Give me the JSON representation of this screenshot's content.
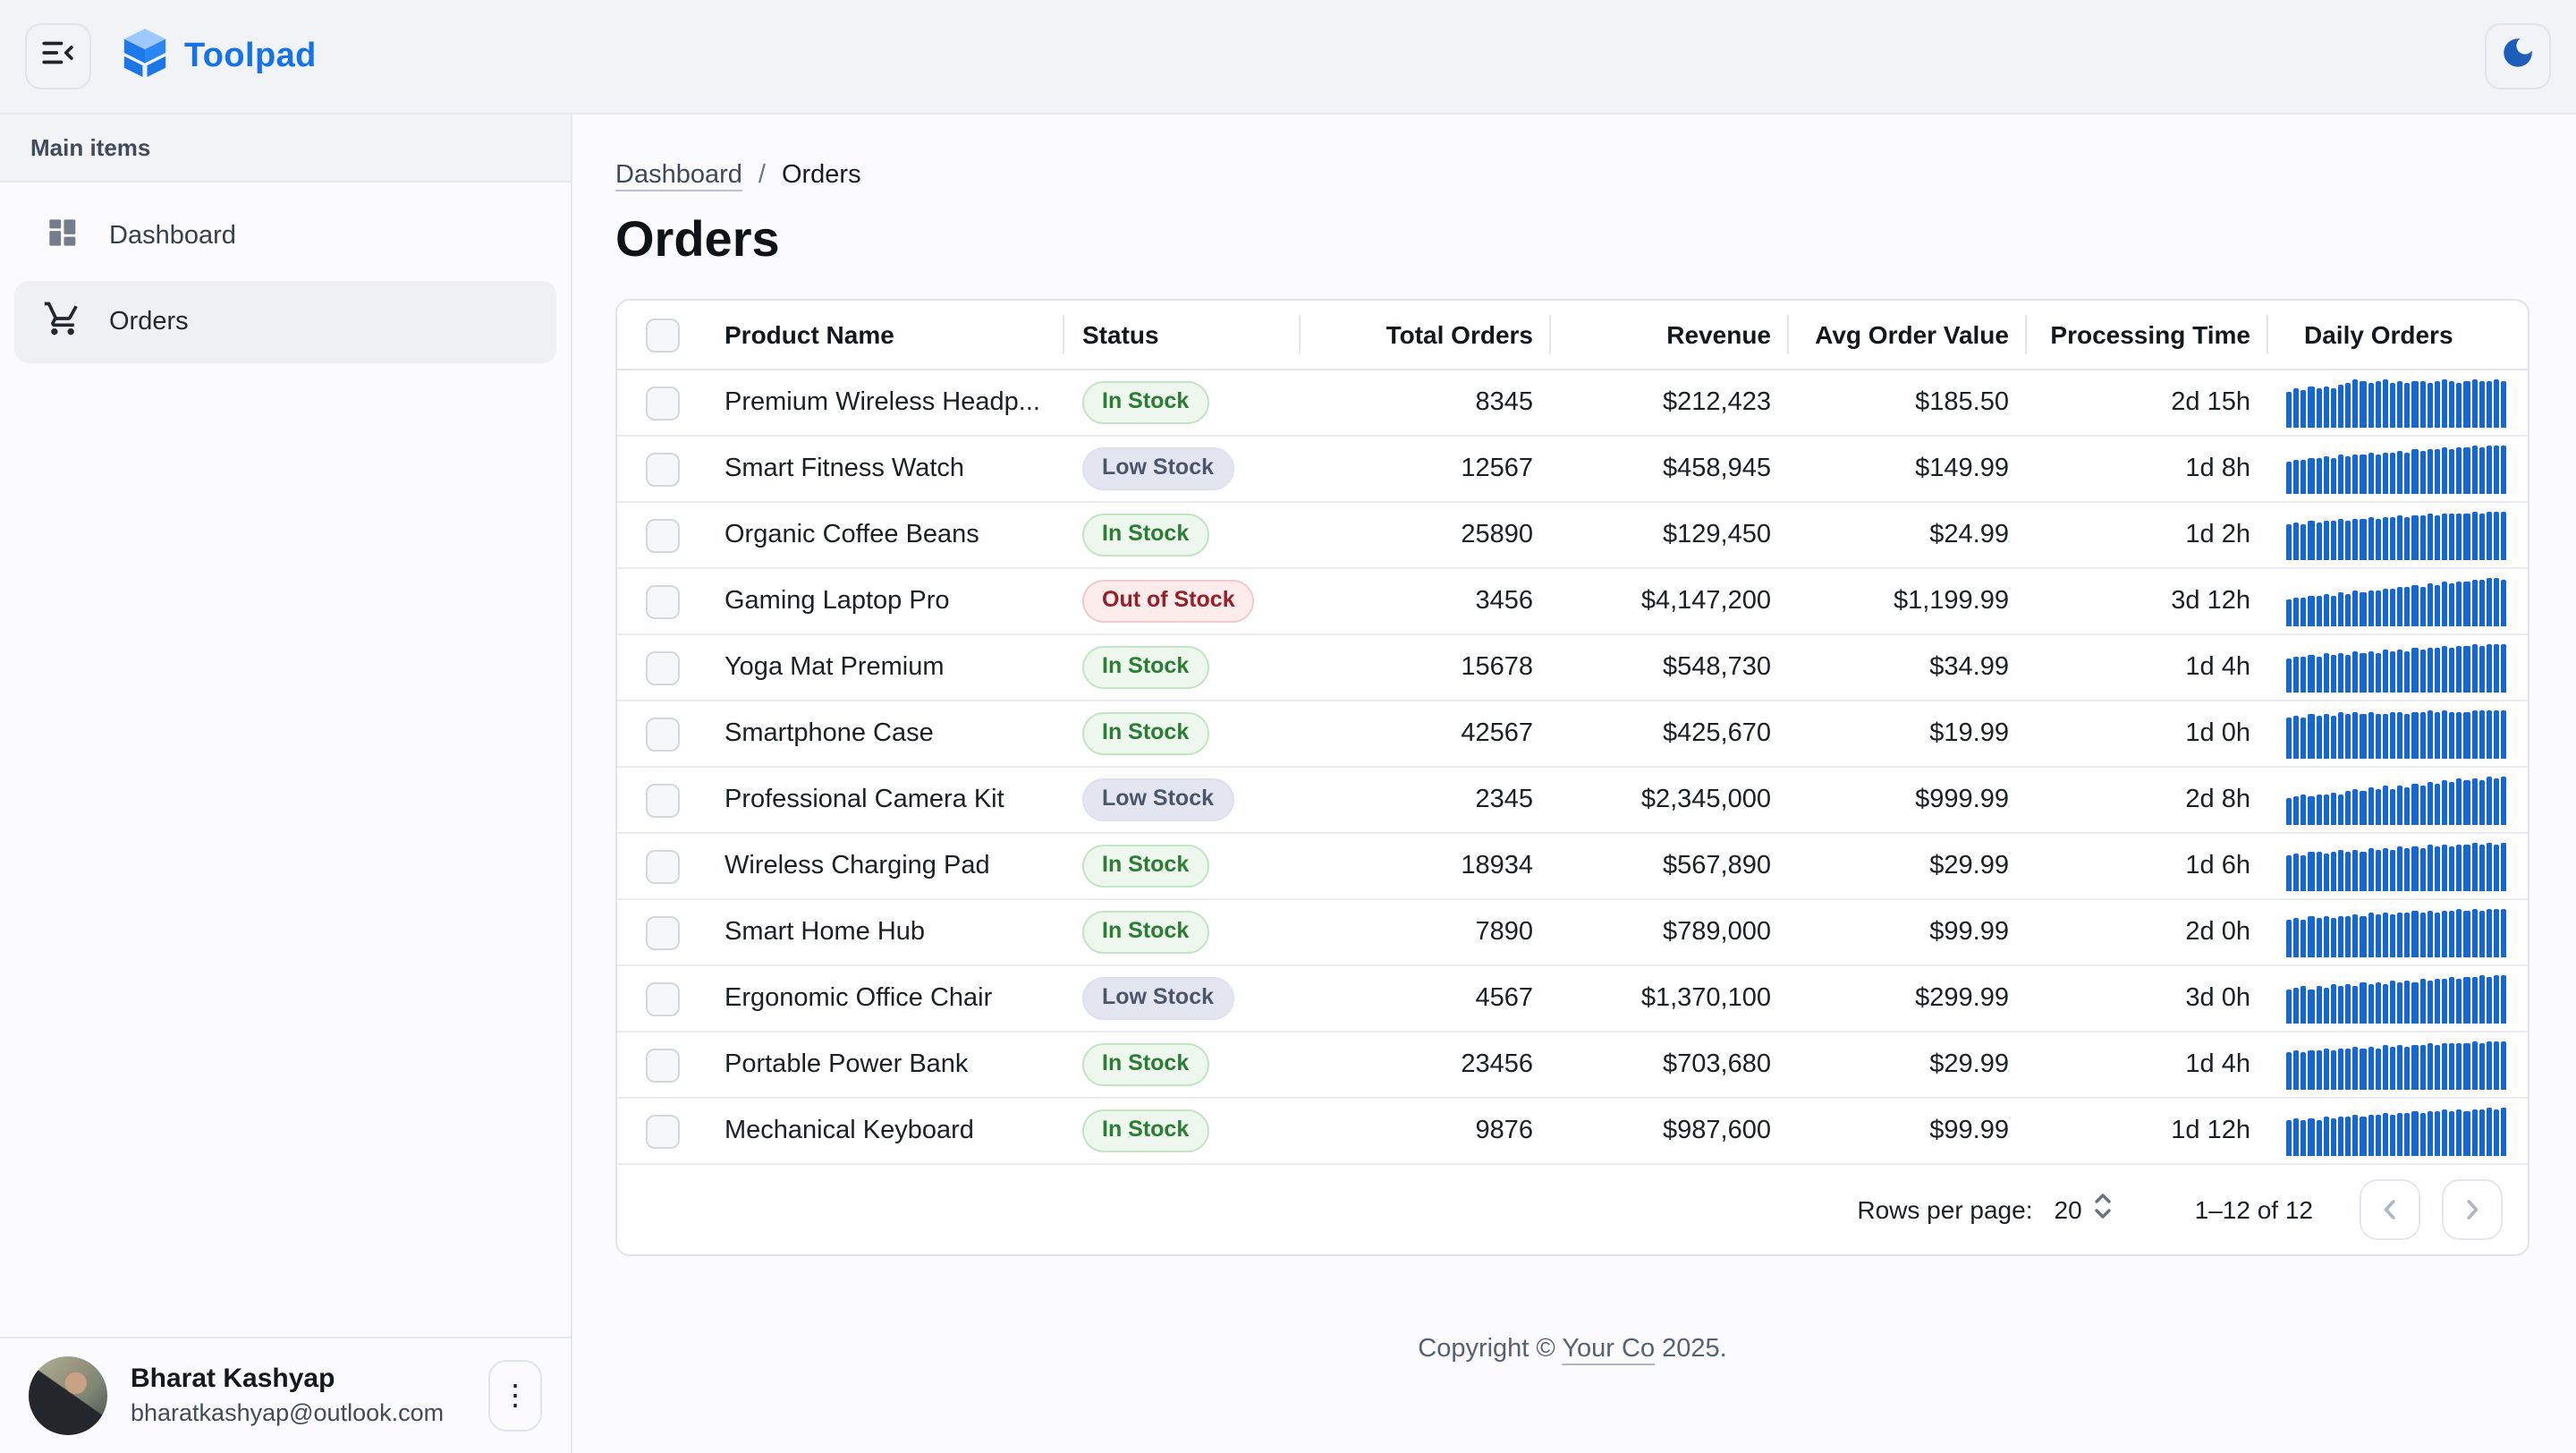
{
  "header": {
    "brand": "Toolpad"
  },
  "sidebar": {
    "section_label": "Main items",
    "items": [
      {
        "label": "Dashboard",
        "icon": "dashboard-icon",
        "selected": false
      },
      {
        "label": "Orders",
        "icon": "cart-icon",
        "selected": true
      }
    ],
    "user": {
      "name": "Bharat Kashyap",
      "email": "bharatkashyap@outlook.com"
    }
  },
  "breadcrumb": {
    "parent": "Dashboard",
    "separator": "/",
    "current": "Orders"
  },
  "page_title": "Orders",
  "table": {
    "columns": {
      "product": "Product Name",
      "status": "Status",
      "total_orders": "Total Orders",
      "revenue": "Revenue",
      "avg_order_value": "Avg Order Value",
      "processing_time": "Processing Time",
      "daily_orders": "Daily Orders"
    },
    "rows": [
      {
        "product": "Premium Wireless Headp...",
        "status": "In Stock",
        "status_variant": "in",
        "total_orders": "8345",
        "revenue": "$212,423",
        "avg_order_value": "$185.50",
        "processing_time": "2d 15h",
        "daily_orders": [
          0.74,
          0.8,
          0.76,
          0.83,
          0.78,
          0.85,
          0.8,
          0.88,
          0.92,
          1,
          0.95,
          0.9,
          0.94,
          0.97,
          0.92,
          0.95,
          0.9,
          0.93,
          0.96,
          0.92,
          0.95,
          0.98,
          0.93,
          0.9,
          0.94,
          0.97,
          0.93,
          0.96,
          1,
          0.95
        ]
      },
      {
        "product": "Smart Fitness Watch",
        "status": "Low Stock",
        "status_variant": "low",
        "total_orders": "12567",
        "revenue": "$458,945",
        "avg_order_value": "$149.99",
        "processing_time": "1d 8h",
        "daily_orders": [
          0.66,
          0.7,
          0.68,
          0.73,
          0.71,
          0.75,
          0.73,
          0.78,
          0.76,
          0.8,
          0.78,
          0.83,
          0.81,
          0.85,
          0.83,
          0.87,
          0.85,
          0.89,
          0.87,
          0.91,
          0.89,
          0.93,
          0.91,
          0.95,
          0.93,
          0.97,
          0.95,
          1,
          0.97,
          1
        ]
      },
      {
        "product": "Organic Coffee Beans",
        "status": "In Stock",
        "status_variant": "in",
        "total_orders": "25890",
        "revenue": "$129,450",
        "avg_order_value": "$24.99",
        "processing_time": "1d 2h",
        "daily_orders": [
          0.72,
          0.76,
          0.74,
          0.79,
          0.77,
          0.81,
          0.79,
          0.83,
          0.81,
          0.85,
          0.83,
          0.87,
          0.85,
          0.88,
          0.86,
          0.9,
          0.88,
          0.92,
          0.9,
          0.93,
          0.91,
          0.95,
          0.93,
          0.96,
          0.94,
          0.98,
          0.95,
          1,
          0.97,
          1
        ]
      },
      {
        "product": "Gaming Laptop Pro",
        "status": "Out of Stock",
        "status_variant": "out",
        "total_orders": "3456",
        "revenue": "$4,147,200",
        "avg_order_value": "$1,199.99",
        "processing_time": "3d 12h",
        "daily_orders": [
          0.55,
          0.59,
          0.57,
          0.62,
          0.6,
          0.65,
          0.63,
          0.68,
          0.66,
          0.71,
          0.69,
          0.74,
          0.72,
          0.77,
          0.75,
          0.8,
          0.78,
          0.83,
          0.81,
          0.86,
          0.84,
          0.89,
          0.87,
          0.92,
          0.9,
          0.95,
          0.93,
          0.98,
          1,
          0.96
        ]
      },
      {
        "product": "Yoga Mat Premium",
        "status": "In Stock",
        "status_variant": "in",
        "total_orders": "15678",
        "revenue": "$548,730",
        "avg_order_value": "$34.99",
        "processing_time": "1d 4h",
        "daily_orders": [
          0.7,
          0.74,
          0.71,
          0.76,
          0.73,
          0.78,
          0.75,
          0.8,
          0.77,
          0.82,
          0.79,
          0.84,
          0.81,
          0.86,
          0.83,
          0.88,
          0.85,
          0.9,
          0.87,
          0.92,
          0.89,
          0.94,
          0.91,
          0.95,
          0.93,
          0.97,
          0.95,
          1,
          0.97,
          1
        ]
      },
      {
        "product": "Smartphone Case",
        "status": "In Stock",
        "status_variant": "in",
        "total_orders": "42567",
        "revenue": "$425,670",
        "avg_order_value": "$19.99",
        "processing_time": "1d 0h",
        "daily_orders": [
          0.84,
          0.88,
          0.85,
          0.9,
          0.86,
          0.91,
          0.88,
          0.93,
          0.89,
          0.94,
          0.9,
          0.95,
          0.91,
          0.89,
          0.93,
          0.96,
          0.92,
          0.95,
          0.93,
          0.97,
          0.94,
          0.98,
          0.95,
          0.93,
          0.96,
          1,
          0.97,
          1,
          0.98,
          1
        ]
      },
      {
        "product": "Professional Camera Kit",
        "status": "Low Stock",
        "status_variant": "low",
        "total_orders": "2345",
        "revenue": "$2,345,000",
        "avg_order_value": "$999.99",
        "processing_time": "2d 8h",
        "daily_orders": [
          0.52,
          0.56,
          0.6,
          0.57,
          0.63,
          0.6,
          0.66,
          0.63,
          0.69,
          0.72,
          0.68,
          0.75,
          0.71,
          0.78,
          0.74,
          0.81,
          0.77,
          0.84,
          0.8,
          0.87,
          0.83,
          0.9,
          0.86,
          0.93,
          0.89,
          0.96,
          0.92,
          1,
          0.95,
          1
        ]
      },
      {
        "product": "Wireless Charging Pad",
        "status": "In Stock",
        "status_variant": "in",
        "total_orders": "18934",
        "revenue": "$567,890",
        "avg_order_value": "$29.99",
        "processing_time": "1d 6h",
        "daily_orders": [
          0.73,
          0.77,
          0.74,
          0.79,
          0.81,
          0.76,
          0.8,
          0.83,
          0.79,
          0.84,
          0.81,
          0.86,
          0.83,
          0.88,
          0.85,
          0.9,
          0.87,
          0.91,
          0.88,
          0.93,
          0.9,
          0.94,
          0.91,
          0.96,
          0.93,
          0.97,
          0.94,
          1,
          0.96,
          1
        ]
      },
      {
        "product": "Smart Home Hub",
        "status": "In Stock",
        "status_variant": "in",
        "total_orders": "7890",
        "revenue": "$789,000",
        "avg_order_value": "$99.99",
        "processing_time": "2d 0h",
        "daily_orders": [
          0.76,
          0.8,
          0.77,
          0.82,
          0.79,
          0.84,
          0.81,
          0.85,
          0.83,
          0.87,
          0.84,
          0.89,
          0.86,
          0.9,
          0.87,
          0.92,
          0.89,
          0.93,
          0.9,
          0.94,
          0.91,
          0.96,
          0.93,
          0.97,
          0.94,
          0.98,
          0.96,
          1,
          0.97,
          1
        ]
      },
      {
        "product": "Ergonomic Office Chair",
        "status": "Low Stock",
        "status_variant": "low",
        "total_orders": "4567",
        "revenue": "$1,370,100",
        "avg_order_value": "$299.99",
        "processing_time": "3d 0h",
        "daily_orders": [
          0.68,
          0.72,
          0.75,
          0.7,
          0.76,
          0.73,
          0.78,
          0.75,
          0.8,
          0.77,
          0.82,
          0.79,
          0.84,
          0.81,
          0.86,
          0.83,
          0.88,
          0.85,
          0.9,
          0.87,
          0.92,
          0.89,
          0.94,
          0.91,
          0.96,
          0.93,
          0.98,
          0.95,
          1,
          0.97
        ]
      },
      {
        "product": "Portable Power Bank",
        "status": "In Stock",
        "status_variant": "in",
        "total_orders": "23456",
        "revenue": "$703,680",
        "avg_order_value": "$29.99",
        "processing_time": "1d 4h",
        "daily_orders": [
          0.75,
          0.79,
          0.76,
          0.81,
          0.78,
          0.83,
          0.8,
          0.84,
          0.82,
          0.86,
          0.83,
          0.88,
          0.85,
          0.89,
          0.87,
          0.91,
          0.88,
          0.92,
          0.9,
          0.94,
          0.91,
          0.95,
          0.93,
          0.96,
          0.94,
          0.98,
          0.95,
          1,
          0.97,
          1
        ]
      },
      {
        "product": "Mechanical Keyboard",
        "status": "In Stock",
        "status_variant": "in",
        "total_orders": "9876",
        "revenue": "$987,600",
        "avg_order_value": "$99.99",
        "processing_time": "1d 12h",
        "daily_orders": [
          0.71,
          0.75,
          0.72,
          0.77,
          0.74,
          0.79,
          0.76,
          0.81,
          0.78,
          0.83,
          0.8,
          0.85,
          0.82,
          0.87,
          0.84,
          0.88,
          0.86,
          0.9,
          0.87,
          0.92,
          0.89,
          0.93,
          0.91,
          0.95,
          0.92,
          0.96,
          0.94,
          0.98,
          0.96,
          1
        ]
      }
    ]
  },
  "pagination": {
    "rows_per_page_label": "Rows per page:",
    "rows_per_page": "20",
    "range": "1–12 of 12"
  },
  "footer": {
    "prefix": "Copyright © ",
    "link": "Your Co",
    "suffix": " 2025."
  },
  "colors": {
    "accent_blue": "#1673e6",
    "sparkline_blue": "#1668cf",
    "moon_blue": "#1d5cb8",
    "status_in_stock": "#2a7d33",
    "status_low_stock": "#4c566b",
    "status_out_of_stock": "#971f25",
    "header_bg": "#f1f3f7"
  }
}
